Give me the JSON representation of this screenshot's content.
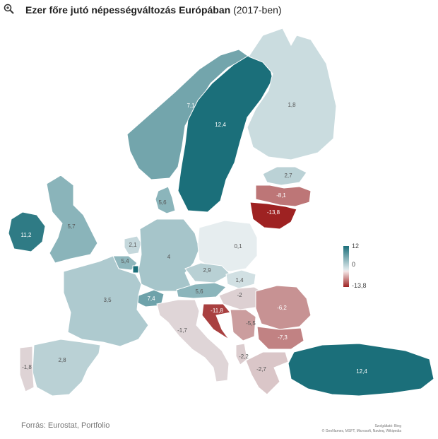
{
  "title": {
    "bold": "Ezer főre jutó népességváltozás Európában",
    "normal": "(2017-ben)"
  },
  "source": "Forrás: Eurostat, Portfolio",
  "credits": {
    "line1": "Szolgáltató: Bing",
    "line2": "© GeoNames, MSFT, Microsoft, Navteq, Wikipedia"
  },
  "legend": {
    "max": "12",
    "mid": "0",
    "min": "-13,8"
  },
  "colors": {
    "positive": "#1b6f7a",
    "neutral": "#e8eef0",
    "negative": "#9e2222"
  },
  "icons": {
    "zoom": "magnifier-icon"
  },
  "countries": [
    {
      "name": "Norway",
      "value": 7.1,
      "label": "7,1"
    },
    {
      "name": "Sweden",
      "value": 12.4,
      "label": "12,4"
    },
    {
      "name": "Finland",
      "value": 1.8,
      "label": "1,8"
    },
    {
      "name": "Estonia",
      "value": 2.7,
      "label": "2,7"
    },
    {
      "name": "Latvia",
      "value": -8.1,
      "label": "-8,1"
    },
    {
      "name": "Lithuania",
      "value": -13.8,
      "label": "-13,8"
    },
    {
      "name": "Denmark",
      "value": 5.6,
      "label": "5,6"
    },
    {
      "name": "Ireland",
      "value": 11.2,
      "label": "11,2"
    },
    {
      "name": "United Kingdom",
      "value": 5.7,
      "label": "5,7"
    },
    {
      "name": "Netherlands",
      "value": 2.1,
      "label": "2,1"
    },
    {
      "name": "Belgium",
      "value": 5.4,
      "label": "5,4"
    },
    {
      "name": "Luxembourg",
      "value": 12.4,
      "label": ""
    },
    {
      "name": "Germany",
      "value": 4,
      "label": "4"
    },
    {
      "name": "Poland",
      "value": 0.1,
      "label": "0,1"
    },
    {
      "name": "Czechia",
      "value": 2.9,
      "label": "2,9"
    },
    {
      "name": "Slovakia",
      "value": 1.4,
      "label": "1,4"
    },
    {
      "name": "Austria",
      "value": 5.6,
      "label": "5,6"
    },
    {
      "name": "Switzerland",
      "value": 7.4,
      "label": "7,4"
    },
    {
      "name": "France",
      "value": 3.5,
      "label": "3,5"
    },
    {
      "name": "Hungary",
      "value": -2,
      "label": "-2"
    },
    {
      "name": "Romania",
      "value": -6.2,
      "label": "-6,2"
    },
    {
      "name": "Croatia",
      "value": -11.8,
      "label": "-11,8"
    },
    {
      "name": "Serbia",
      "value": -5.5,
      "label": "-5,5"
    },
    {
      "name": "Bulgaria",
      "value": -7.3,
      "label": "-7,3"
    },
    {
      "name": "Italy",
      "value": -1.7,
      "label": "-1,7"
    },
    {
      "name": "Spain",
      "value": 2.8,
      "label": "2,8"
    },
    {
      "name": "Portugal",
      "value": -1.8,
      "label": "-1,8"
    },
    {
      "name": "Albania",
      "value": -2.2,
      "label": "-2,2"
    },
    {
      "name": "Greece",
      "value": -2.7,
      "label": "-2,7"
    },
    {
      "name": "Turkey",
      "value": 12.4,
      "label": "12,4"
    }
  ]
}
